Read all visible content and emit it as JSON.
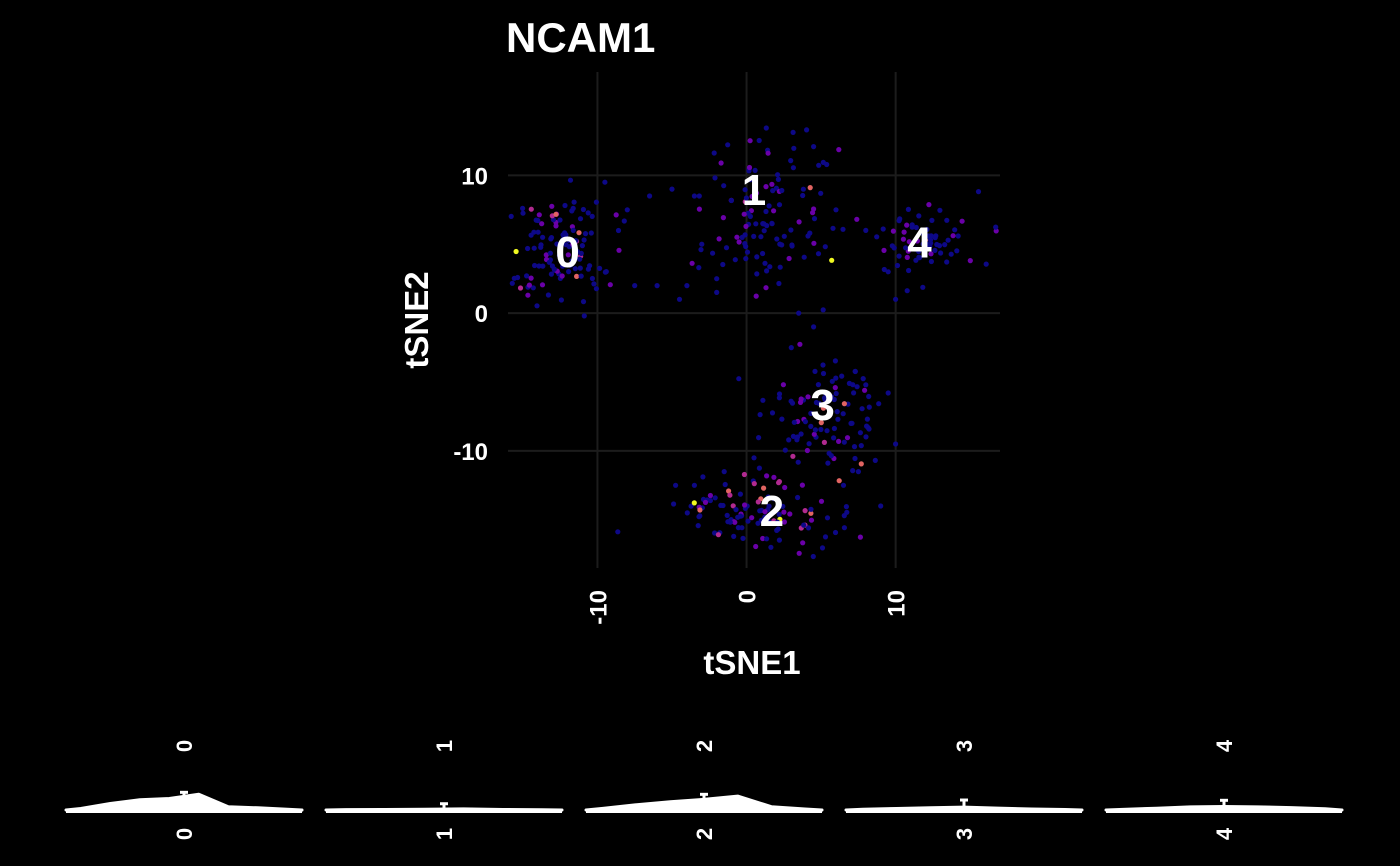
{
  "chart_data": [
    {
      "type": "scatter",
      "title": "NCAM1",
      "xlabel": "tSNE1",
      "ylabel": "tSNE2",
      "xlim": [
        -16,
        17
      ],
      "ylim": [
        -18.5,
        17.5
      ],
      "xticks": [
        -10,
        0,
        10
      ],
      "yticks": [
        -10,
        0,
        10
      ],
      "grid": true,
      "color_scale": [
        "#0d0887",
        "#6a00a8",
        "#b12a90",
        "#e16462",
        "#fca636",
        "#f0f921"
      ],
      "cluster_labels": [
        {
          "label": "0",
          "x": -12,
          "y": 4.5
        },
        {
          "label": "1",
          "x": 0.5,
          "y": 9.0
        },
        {
          "label": "2",
          "x": 1.7,
          "y": -14.3
        },
        {
          "label": "3",
          "x": 5.1,
          "y": -6.6
        },
        {
          "label": "4",
          "x": 11.6,
          "y": 5.2
        }
      ],
      "clusters": [
        {
          "id": "0",
          "cx": -12.5,
          "cy": 4.5,
          "sx": 2.4,
          "sy": 2.9,
          "n": 120,
          "hi": 0.12
        },
        {
          "id": "1",
          "cx": 1.0,
          "cy": 7.5,
          "sx": 3.2,
          "sy": 4.2,
          "n": 115,
          "hi": 0.02
        },
        {
          "id": "2",
          "cx": 1.0,
          "cy": -14.5,
          "sx": 3.6,
          "sy": 1.7,
          "n": 110,
          "hi": 0.14
        },
        {
          "id": "3",
          "cx": 5.5,
          "cy": -7.5,
          "sx": 2.6,
          "sy": 2.6,
          "n": 100,
          "hi": 0.08
        },
        {
          "id": "4",
          "cx": 12.0,
          "cy": 5.0,
          "sx": 2.0,
          "sy": 1.8,
          "n": 70,
          "hi": 0.05
        }
      ],
      "bridge_points": [
        [
          -8,
          7.5
        ],
        [
          -6.5,
          8.5
        ],
        [
          -5,
          9
        ],
        [
          -3.5,
          8.5
        ],
        [
          -7.5,
          2
        ],
        [
          -6,
          2
        ],
        [
          -4.5,
          1
        ],
        [
          -3,
          5
        ],
        [
          -4,
          2
        ],
        [
          -2,
          2.5
        ],
        [
          6,
          7.5
        ],
        [
          8,
          6
        ],
        [
          9.5,
          3
        ],
        [
          10,
          1
        ],
        [
          -9.5,
          9.5
        ],
        [
          -2,
          1.5
        ],
        [
          3.5,
          0
        ],
        [
          4.5,
          -1
        ],
        [
          8,
          -5.2
        ],
        [
          9.5,
          -5.8
        ],
        [
          10,
          -9.5
        ],
        [
          3,
          -2.5
        ],
        [
          6.5,
          -12.5
        ],
        [
          7.5,
          -11.5
        ],
        [
          9,
          -14
        ],
        [
          -3.5,
          -12.5
        ],
        [
          -1.5,
          -11.5
        ],
        [
          0.5,
          -10.5
        ]
      ]
    },
    {
      "type": "violin",
      "categories": [
        "0",
        "1",
        "2",
        "3",
        "4"
      ],
      "series": [
        {
          "category": "0",
          "width_profile": [
            0.08,
            0.35,
            0.55,
            0.62,
            0.85,
            0.18,
            0.12,
            0.04
          ],
          "max_height": 0.62
        },
        {
          "category": "1",
          "width_profile": [
            0.06,
            0.08,
            0.1,
            0.16,
            0.08,
            0.04
          ],
          "max_height": 0.22
        },
        {
          "category": "2",
          "width_profile": [
            0.1,
            0.32,
            0.5,
            0.64,
            0.84,
            0.2,
            0.06
          ],
          "max_height": 0.55
        },
        {
          "category": "3",
          "width_profile": [
            0.08,
            0.14,
            0.22,
            0.28,
            0.18,
            0.1,
            0.05
          ],
          "max_height": 0.35
        },
        {
          "category": "4",
          "width_profile": [
            0.06,
            0.18,
            0.3,
            0.34,
            0.3,
            0.24,
            0.12
          ],
          "max_height": 0.34
        }
      ]
    }
  ]
}
